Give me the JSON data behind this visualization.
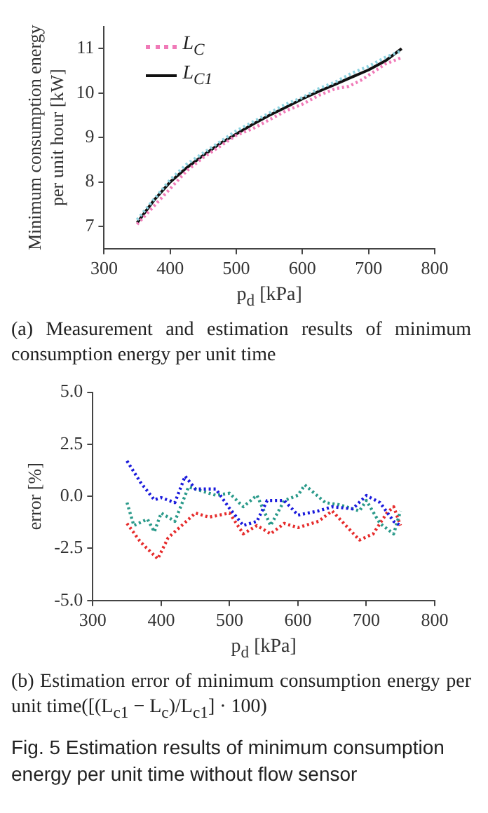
{
  "chart_data": [
    {
      "type": "line",
      "xlabel": "p$_{d}$ [kPa]",
      "ylabel": "Minimum consumption energy\nper unit hour [kW]",
      "xlim": [
        300,
        800
      ],
      "xticks": [
        300,
        400,
        500,
        600,
        700,
        800
      ],
      "ylim": [
        6.5,
        11.5
      ],
      "yticks": [
        7,
        8,
        9,
        10,
        11
      ],
      "grid": false,
      "legend": "top left",
      "marker": "none",
      "series": [
        {
          "name": "L$_{C}$",
          "color": "#f07ab8",
          "line_style": "dotted",
          "x": [
            350,
            375,
            400,
            425,
            450,
            475,
            500,
            525,
            550,
            575,
            600,
            625,
            650,
            670,
            690,
            700,
            725,
            750
          ],
          "values": [
            7.05,
            7.45,
            7.85,
            8.25,
            8.55,
            8.8,
            9.05,
            9.2,
            9.4,
            9.6,
            9.75,
            9.95,
            10.1,
            10.15,
            10.3,
            10.4,
            10.65,
            10.8
          ]
        },
        {
          "color": "#8fd3e0",
          "line_style": "dotted",
          "x": [
            350,
            375,
            400,
            425,
            450,
            475,
            500,
            525,
            550,
            575,
            600,
            625,
            650,
            675,
            700,
            725,
            750
          ],
          "values": [
            7.15,
            7.6,
            8.05,
            8.4,
            8.65,
            8.9,
            9.15,
            9.35,
            9.55,
            9.75,
            9.9,
            10.1,
            10.25,
            10.45,
            10.6,
            10.8,
            10.95
          ]
        },
        {
          "name": "L$_{C1}$",
          "color": "#111111",
          "line_style": "solid",
          "x": [
            350,
            375,
            400,
            425,
            450,
            475,
            500,
            525,
            550,
            575,
            600,
            625,
            650,
            675,
            700,
            725,
            750
          ],
          "values": [
            7.08,
            7.58,
            8.0,
            8.32,
            8.6,
            8.86,
            9.08,
            9.3,
            9.5,
            9.68,
            9.87,
            10.04,
            10.2,
            10.36,
            10.52,
            10.72,
            11.0
          ]
        }
      ],
      "annotations": [
        "(a) Measurement and estimation results of minimum consumption energy per unit time"
      ]
    },
    {
      "type": "line",
      "xlabel": "p$_{d}$ [kPa]",
      "ylabel": "error [%]",
      "xlim": [
        300,
        800
      ],
      "xticks": [
        300,
        400,
        500,
        600,
        700,
        800
      ],
      "ylim": [
        -5,
        5
      ],
      "yticks": [
        {
          "value": -5,
          "label": "-5.0"
        },
        {
          "value": -2.5,
          "label": "-2.5"
        },
        {
          "value": 0,
          "label": "0.0"
        },
        {
          "value": 2.5,
          "label": "2.5"
        },
        {
          "value": 5,
          "label": "5.0"
        }
      ],
      "grid": false,
      "marker": "none",
      "series": [
        {
          "color": "#1a1adc",
          "line_style": "dotted",
          "x": [
            350,
            370,
            390,
            400,
            420,
            435,
            450,
            480,
            500,
            520,
            540,
            555,
            580,
            600,
            630,
            650,
            680,
            700,
            720,
            740,
            750
          ],
          "values": [
            1.7,
            0.66,
            -0.17,
            -0.06,
            -0.3,
            0.97,
            0.35,
            0.35,
            -0.58,
            -1.4,
            -1.2,
            -0.2,
            -0.2,
            -0.9,
            -0.7,
            -0.5,
            -0.6,
            0.04,
            -0.3,
            -1.2,
            -1.4
          ]
        },
        {
          "color": "#2a9a8a",
          "line_style": "dotted",
          "x": [
            350,
            360,
            380,
            390,
            400,
            420,
            440,
            460,
            480,
            500,
            520,
            540,
            560,
            580,
            600,
            610,
            640,
            660,
            690,
            700,
            720,
            740,
            750
          ],
          "values": [
            -0.3,
            -1.4,
            -1.1,
            -1.7,
            -0.8,
            -1.2,
            0.45,
            0.25,
            0.05,
            0.15,
            -0.5,
            0.05,
            -1.4,
            -0.2,
            0.05,
            0.55,
            -0.3,
            -0.4,
            -0.7,
            -0.2,
            -1.3,
            -1.8,
            -0.7
          ]
        },
        {
          "color": "#e62b2b",
          "line_style": "dotted",
          "x": [
            350,
            370,
            395,
            410,
            430,
            450,
            470,
            500,
            520,
            540,
            560,
            580,
            600,
            630,
            650,
            670,
            690,
            710,
            730,
            740,
            750
          ],
          "values": [
            -1.3,
            -2.2,
            -3.0,
            -2.0,
            -1.4,
            -0.8,
            -1.0,
            -0.8,
            -1.8,
            -1.4,
            -1.8,
            -1.3,
            -1.5,
            -1.2,
            -0.7,
            -1.4,
            -2.1,
            -1.8,
            -0.8,
            -0.5,
            -1.4
          ]
        }
      ],
      "annotations": [
        "(b) Estimation error of minimum consumption energy per unit time([(L$_{c1}$ − L$_{c}$)/L$_{c1}$] · 100)",
        "Fig. 5 Estimation results of minimum consumption energy per unit time without flow sensor"
      ]
    }
  ]
}
